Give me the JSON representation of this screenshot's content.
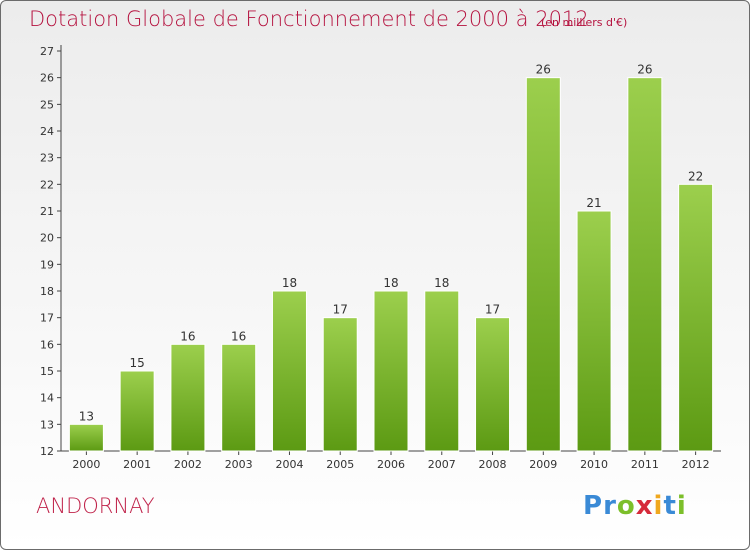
{
  "header": {
    "title": "Dotation Globale de Fonctionnement de 2000 à 2012",
    "subtitle": "(en milliers d'€)"
  },
  "commune": "ANDORNAY",
  "logo_text": "Proxiti",
  "colors": {
    "title": "#b5123f",
    "bar_top": "#9ccf4d",
    "bar_bottom": "#5c9a13"
  },
  "chart_data": {
    "type": "bar",
    "categories": [
      "2000",
      "2001",
      "2002",
      "2003",
      "2004",
      "2005",
      "2006",
      "2007",
      "2008",
      "2009",
      "2010",
      "2011",
      "2012"
    ],
    "values": [
      13,
      15,
      16,
      16,
      18,
      17,
      18,
      18,
      17,
      26,
      21,
      26,
      22
    ],
    "title": "Dotation Globale de Fonctionnement de 2000 à 2012",
    "xlabel": "",
    "ylabel": "",
    "ylim": [
      12,
      27
    ],
    "yticks": [
      12,
      13,
      14,
      15,
      16,
      17,
      18,
      19,
      20,
      21,
      22,
      23,
      24,
      25,
      26,
      27
    ],
    "grid": false,
    "data_labels": true
  }
}
